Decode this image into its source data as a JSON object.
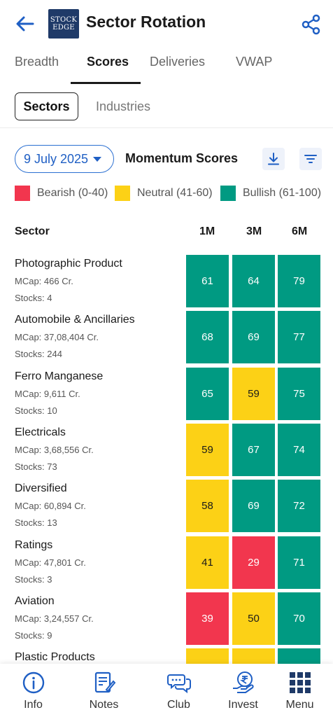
{
  "header": {
    "title": "Sector Rotation",
    "logo_line1": "STOCK",
    "logo_line2": "EDGE"
  },
  "tabs": [
    {
      "label": "Breadth",
      "active": false
    },
    {
      "label": "Scores",
      "active": true
    },
    {
      "label": "Deliveries",
      "active": false
    },
    {
      "label": "VWAP",
      "active": false
    }
  ],
  "segments": {
    "active": "Sectors",
    "inactive": "Industries"
  },
  "controls": {
    "date": "9 July 2025",
    "title": "Momentum Scores"
  },
  "legend": [
    {
      "label": "Bearish (0-40)",
      "color": "#f2364e"
    },
    {
      "label": "Neutral (41-60)",
      "color": "#fcd116"
    },
    {
      "label": "Bullish (61-100)",
      "color": "#009a82"
    }
  ],
  "table": {
    "headers": [
      "Sector",
      "1M",
      "3M",
      "6M"
    ],
    "rows": [
      {
        "name": "Photographic Product",
        "mcap": "MCap: 466 Cr.",
        "stocks": "Stocks: 4",
        "scores": [
          61,
          64,
          79
        ]
      },
      {
        "name": "Automobile & Ancillaries",
        "mcap": "MCap: 37,08,404 Cr.",
        "stocks": "Stocks: 244",
        "scores": [
          68,
          69,
          77
        ]
      },
      {
        "name": "Ferro Manganese",
        "mcap": "MCap: 9,611 Cr.",
        "stocks": "Stocks: 10",
        "scores": [
          65,
          59,
          75
        ]
      },
      {
        "name": "Electricals",
        "mcap": "MCap: 3,68,556 Cr.",
        "stocks": "Stocks: 73",
        "scores": [
          59,
          67,
          74
        ]
      },
      {
        "name": "Diversified",
        "mcap": "MCap: 60,894 Cr.",
        "stocks": "Stocks: 13",
        "scores": [
          58,
          69,
          72
        ]
      },
      {
        "name": "Ratings",
        "mcap": "MCap: 47,801 Cr.",
        "stocks": "Stocks: 3",
        "scores": [
          41,
          29,
          71
        ]
      },
      {
        "name": "Aviation",
        "mcap": "MCap: 3,24,557 Cr.",
        "stocks": "Stocks: 9",
        "scores": [
          39,
          50,
          70
        ]
      },
      {
        "name": "Plastic Products",
        "mcap": "",
        "stocks": "",
        "scores": [
          null,
          null,
          null
        ],
        "partial_colors": [
          "#fcd116",
          "#fcd116",
          "#009a82"
        ]
      }
    ]
  },
  "bottom_nav": [
    {
      "label": "Info",
      "icon": "info-icon"
    },
    {
      "label": "Notes",
      "icon": "notes-icon"
    },
    {
      "label": "Club",
      "icon": "club-chat-icon"
    },
    {
      "label": "Invest",
      "icon": "rupee-invest-icon"
    },
    {
      "label": "Menu",
      "icon": "menu-grid-icon"
    }
  ],
  "colors": {
    "accent": "#1f5fc4",
    "bearish": "#f2364e",
    "neutral": "#fcd116",
    "bullish": "#009a82"
  }
}
